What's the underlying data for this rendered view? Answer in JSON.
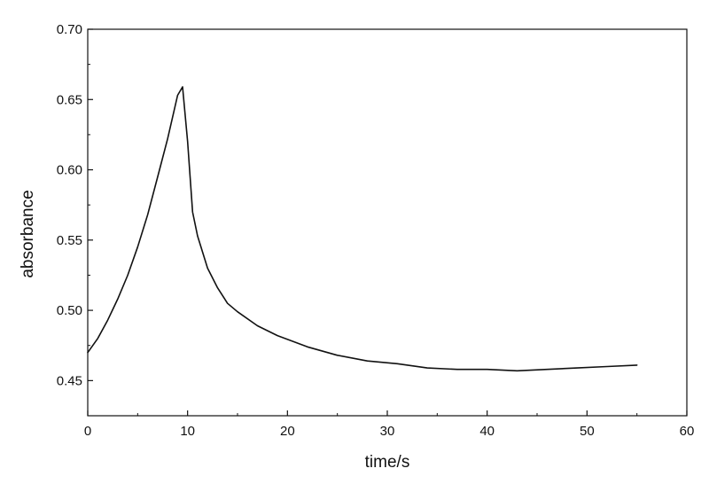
{
  "chart_data": {
    "type": "line",
    "title": "",
    "xlabel": "time/s",
    "ylabel": "absorbance",
    "xlim": [
      0,
      60
    ],
    "ylim": [
      0.425,
      0.7
    ],
    "x_ticks": [
      0,
      10,
      20,
      30,
      40,
      50,
      60
    ],
    "x_tick_labels": [
      "0",
      "10",
      "20",
      "30",
      "40",
      "50",
      "60"
    ],
    "y_ticks": [
      0.45,
      0.5,
      0.55,
      0.6,
      0.65,
      0.7
    ],
    "y_tick_labels": [
      "0.45",
      "0.50",
      "0.55",
      "0.60",
      "0.65",
      "0.70"
    ],
    "grid": false,
    "legend": "none",
    "line_color": "#111111",
    "series": [
      {
        "x": [
          0,
          1,
          2,
          3,
          4,
          5,
          6,
          7,
          8,
          9,
          9.5,
          10,
          10.5,
          11,
          12,
          13,
          14,
          15,
          17,
          19,
          22,
          25,
          28,
          31,
          34,
          37,
          40,
          43,
          46,
          49,
          52,
          55
        ],
        "y": [
          0.47,
          0.48,
          0.493,
          0.508,
          0.525,
          0.545,
          0.568,
          0.595,
          0.622,
          0.653,
          0.659,
          0.62,
          0.57,
          0.553,
          0.53,
          0.516,
          0.505,
          0.499,
          0.489,
          0.482,
          0.474,
          0.468,
          0.464,
          0.462,
          0.459,
          0.458,
          0.458,
          0.457,
          0.458,
          0.459,
          0.46,
          0.461
        ]
      }
    ]
  }
}
